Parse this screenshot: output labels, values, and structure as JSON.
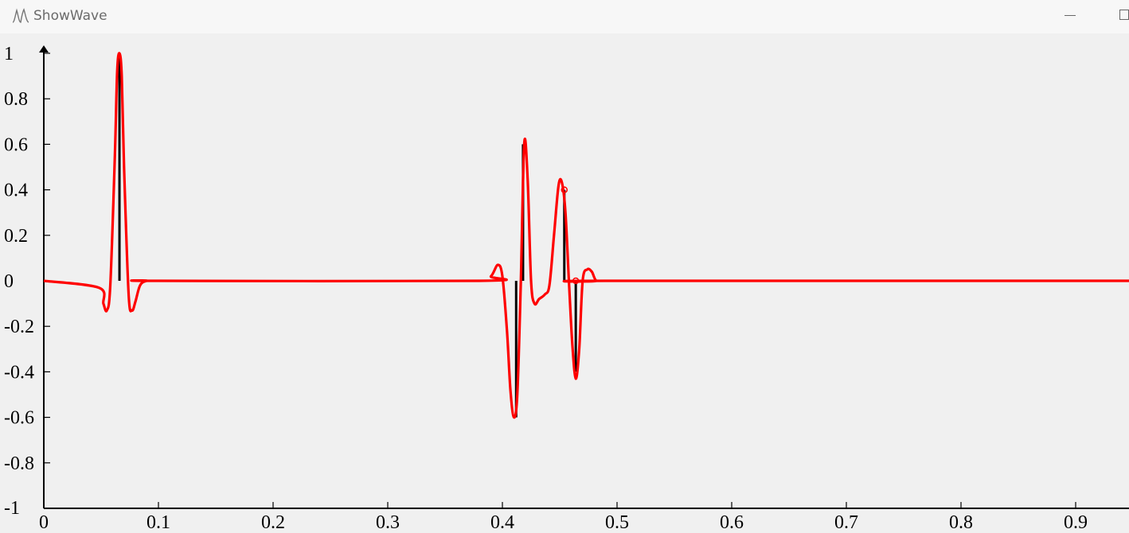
{
  "window": {
    "title": "ShowWave",
    "icon": "waveform-icon",
    "controls": [
      "minimize",
      "maximize"
    ]
  },
  "chart_data": {
    "type": "line",
    "xlim": [
      0,
      0.95
    ],
    "ylim": [
      -1,
      1
    ],
    "x_ticks": [
      "0",
      "0.1",
      "0.2",
      "0.3",
      "0.4",
      "0.5",
      "0.6",
      "0.7",
      "0.8",
      "0.9"
    ],
    "y_ticks": [
      "1",
      "0.8",
      "0.6",
      "0.4",
      "0.2",
      "0",
      "-0.2",
      "-0.4",
      "-0.6",
      "-0.8",
      "-1"
    ],
    "grid": false,
    "colors": {
      "signal": "#ff0000",
      "spikes": "#000000",
      "axes": "#000000"
    },
    "spikes": [
      {
        "x": 0.066,
        "y": 1.0
      },
      {
        "x": 0.412,
        "y": -0.6
      },
      {
        "x": 0.418,
        "y": 0.6
      },
      {
        "x": 0.454,
        "y": 0.4
      },
      {
        "x": 0.464,
        "y": -0.4
      }
    ],
    "markers": [
      {
        "x": 0.454,
        "y": 0.4
      },
      {
        "x": 0.464,
        "y": 0.0
      }
    ],
    "series": [
      {
        "x": [
          0.0,
          0.048,
          0.052,
          0.055,
          0.058,
          0.062,
          0.064,
          0.066,
          0.068,
          0.07,
          0.074,
          0.077,
          0.08,
          0.084,
          0.09,
          0.1,
          0.38,
          0.39,
          0.396,
          0.4,
          0.404,
          0.407,
          0.41,
          0.413,
          0.416,
          0.419,
          0.422,
          0.425,
          0.428,
          0.432,
          0.437,
          0.441,
          0.445,
          0.449,
          0.452,
          0.455,
          0.458,
          0.461,
          0.464,
          0.467,
          0.47,
          0.474,
          0.478,
          0.482,
          0.49,
          0.95
        ],
        "y": [
          0.0,
          -0.03,
          -0.1,
          -0.13,
          -0.02,
          0.55,
          0.92,
          1.0,
          0.9,
          0.5,
          -0.06,
          -0.13,
          -0.09,
          -0.02,
          0.0,
          0.0,
          0.0,
          0.02,
          0.07,
          0.02,
          -0.22,
          -0.48,
          -0.6,
          -0.5,
          -0.02,
          0.6,
          0.45,
          0.0,
          -0.1,
          -0.08,
          -0.06,
          -0.02,
          0.2,
          0.42,
          0.43,
          0.3,
          0.0,
          -0.28,
          -0.43,
          -0.3,
          0.0,
          0.05,
          0.04,
          0.0,
          0.0,
          0.0
        ]
      }
    ]
  }
}
